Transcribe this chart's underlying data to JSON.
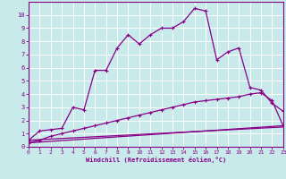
{
  "background_color": "#c8eaea",
  "grid_color": "#ffffff",
  "line_color": "#880088",
  "xlabel": "Windchill (Refroidissement éolien,°C)",
  "xlim": [
    0,
    23
  ],
  "ylim": [
    0,
    11
  ],
  "xticks": [
    0,
    1,
    2,
    3,
    4,
    5,
    6,
    7,
    8,
    9,
    10,
    11,
    12,
    13,
    14,
    15,
    16,
    17,
    18,
    19,
    20,
    21,
    22,
    23
  ],
  "yticks": [
    0,
    1,
    2,
    3,
    4,
    5,
    6,
    7,
    8,
    9,
    10
  ],
  "curve1_x": [
    0,
    1,
    2,
    3,
    4,
    5,
    6,
    7,
    8,
    9,
    10,
    11,
    12,
    13,
    14,
    15,
    16,
    17,
    18,
    19,
    20,
    21,
    22,
    23
  ],
  "curve1_y": [
    0.5,
    1.2,
    1.3,
    1.4,
    3.0,
    2.8,
    5.8,
    5.8,
    7.5,
    8.5,
    7.8,
    8.5,
    9.0,
    9.0,
    9.5,
    10.5,
    10.3,
    6.6,
    7.2,
    7.5,
    4.5,
    4.3,
    3.3,
    2.7
  ],
  "curve2_x": [
    0,
    1,
    2,
    3,
    4,
    5,
    6,
    7,
    8,
    9,
    10,
    11,
    12,
    13,
    14,
    15,
    16,
    17,
    18,
    19,
    20,
    21,
    22,
    23
  ],
  "curve2_y": [
    0.3,
    0.5,
    0.8,
    1.0,
    1.2,
    1.4,
    1.6,
    1.8,
    2.0,
    2.2,
    2.4,
    2.6,
    2.8,
    3.0,
    3.2,
    3.4,
    3.5,
    3.6,
    3.7,
    3.8,
    4.0,
    4.1,
    3.5,
    1.6
  ],
  "line1_x": [
    0,
    23
  ],
  "line1_y": [
    0.5,
    1.5
  ],
  "line2_x": [
    0,
    23
  ],
  "line2_y": [
    0.3,
    1.6
  ]
}
